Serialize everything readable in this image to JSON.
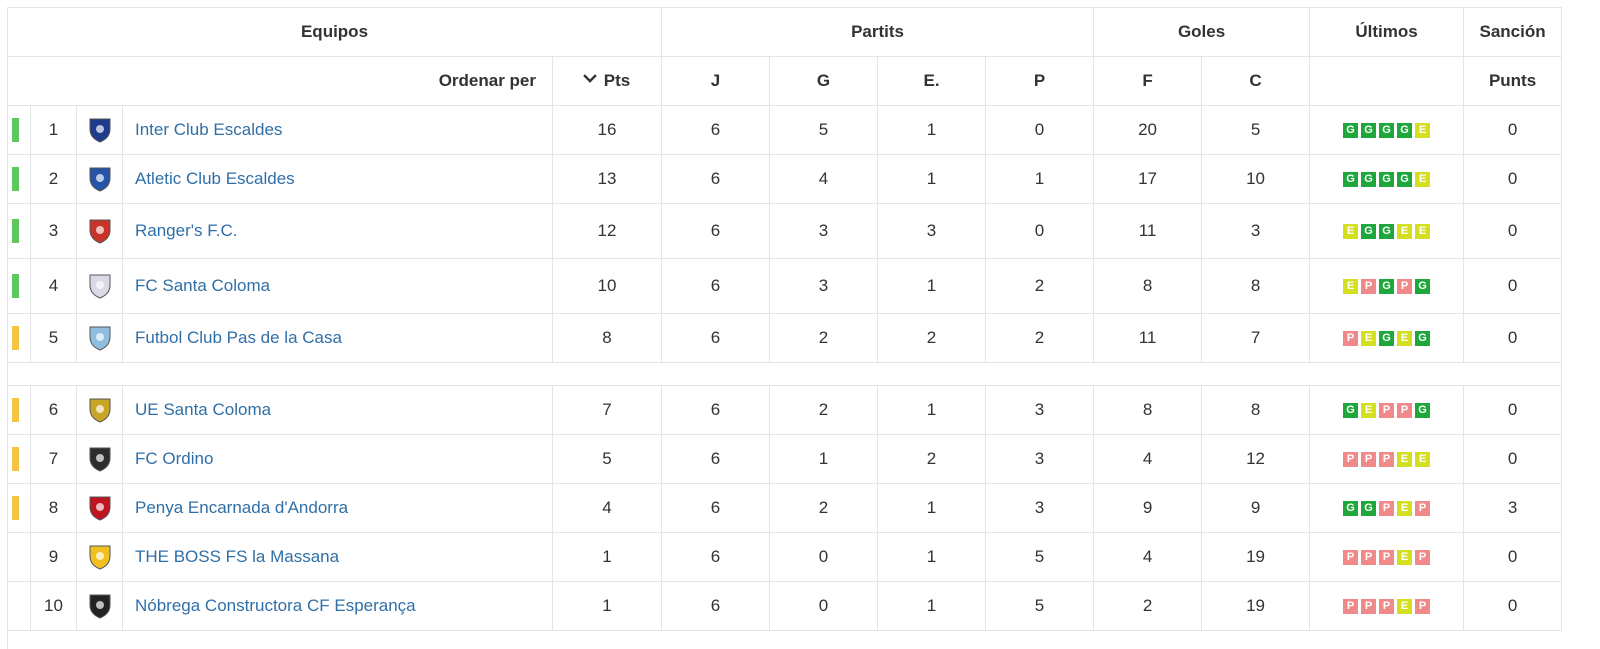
{
  "header": {
    "equipos": "Equipos",
    "partits": "Partits",
    "goles": "Goles",
    "ultimos": "Últimos",
    "sancion": "Sanción",
    "ordenar": "Ordenar per",
    "pts": "Pts",
    "j": "J",
    "g": "G",
    "e": "E.",
    "p": "P",
    "f": "F",
    "c": "C",
    "punts": "Punts"
  },
  "colors": {
    "zone_green": "#5ec85e",
    "zone_orange": "#f5c445",
    "G": "#1ea83c",
    "E": "#d3df1f",
    "P": "#f08a8a",
    "link": "#2f6fa7"
  },
  "rows": [
    {
      "pos": "1",
      "team": "Inter Club Escaldes",
      "pts": "16",
      "j": "6",
      "g": "5",
      "e": "1",
      "p": "0",
      "f": "20",
      "c": "5",
      "form": [
        "G",
        "G",
        "G",
        "G",
        "E"
      ],
      "sancion": "0",
      "zone": "green",
      "logo": "#1f3b8c"
    },
    {
      "pos": "2",
      "team": "Atletic Club Escaldes",
      "pts": "13",
      "j": "6",
      "g": "4",
      "e": "1",
      "p": "1",
      "f": "17",
      "c": "10",
      "form": [
        "G",
        "G",
        "G",
        "G",
        "E"
      ],
      "sancion": "0",
      "zone": "green",
      "logo": "#2553a8"
    },
    {
      "pos": "3",
      "team": "Ranger's F.C.",
      "pts": "12",
      "j": "6",
      "g": "3",
      "e": "3",
      "p": "0",
      "f": "11",
      "c": "3",
      "form": [
        "E",
        "G",
        "G",
        "E",
        "E"
      ],
      "sancion": "0",
      "zone": "green",
      "logo": "#c8342a"
    },
    {
      "pos": "4",
      "team": "FC Santa Coloma",
      "pts": "10",
      "j": "6",
      "g": "3",
      "e": "1",
      "p": "2",
      "f": "8",
      "c": "8",
      "form": [
        "E",
        "P",
        "G",
        "P",
        "G"
      ],
      "sancion": "0",
      "zone": "green",
      "logo": "#d9d9e8"
    },
    {
      "pos": "5",
      "team": "Futbol Club Pas de la Casa",
      "pts": "8",
      "j": "6",
      "g": "2",
      "e": "2",
      "p": "2",
      "f": "11",
      "c": "7",
      "form": [
        "P",
        "E",
        "G",
        "E",
        "G"
      ],
      "sancion": "0",
      "zone": "orange",
      "logo": "#8fbde0"
    },
    {
      "pos": "6",
      "team": "UE Santa Coloma",
      "pts": "7",
      "j": "6",
      "g": "2",
      "e": "1",
      "p": "3",
      "f": "8",
      "c": "8",
      "form": [
        "G",
        "E",
        "P",
        "P",
        "G"
      ],
      "sancion": "0",
      "zone": "orange",
      "logo": "#c8a428"
    },
    {
      "pos": "7",
      "team": "FC Ordino",
      "pts": "5",
      "j": "6",
      "g": "1",
      "e": "2",
      "p": "3",
      "f": "4",
      "c": "12",
      "form": [
        "P",
        "P",
        "P",
        "E",
        "E"
      ],
      "sancion": "0",
      "zone": "orange",
      "logo": "#2d2d2d"
    },
    {
      "pos": "8",
      "team": "Penya Encarnada d'Andorra",
      "pts": "4",
      "j": "6",
      "g": "2",
      "e": "1",
      "p": "3",
      "f": "9",
      "c": "9",
      "form": [
        "G",
        "G",
        "P",
        "E",
        "P"
      ],
      "sancion": "3",
      "zone": "orange",
      "logo": "#c0141e"
    },
    {
      "pos": "9",
      "team": "THE BOSS FS la Massana",
      "pts": "1",
      "j": "6",
      "g": "0",
      "e": "1",
      "p": "5",
      "f": "4",
      "c": "19",
      "form": [
        "P",
        "P",
        "P",
        "E",
        "P"
      ],
      "sancion": "0",
      "zone": "",
      "logo": "#f0c020"
    },
    {
      "pos": "10",
      "team": "Nóbrega Constructora CF Esperança",
      "pts": "1",
      "j": "6",
      "g": "0",
      "e": "1",
      "p": "5",
      "f": "2",
      "c": "19",
      "form": [
        "P",
        "P",
        "P",
        "E",
        "P"
      ],
      "sancion": "0",
      "zone": "",
      "logo": "#222222"
    }
  ]
}
